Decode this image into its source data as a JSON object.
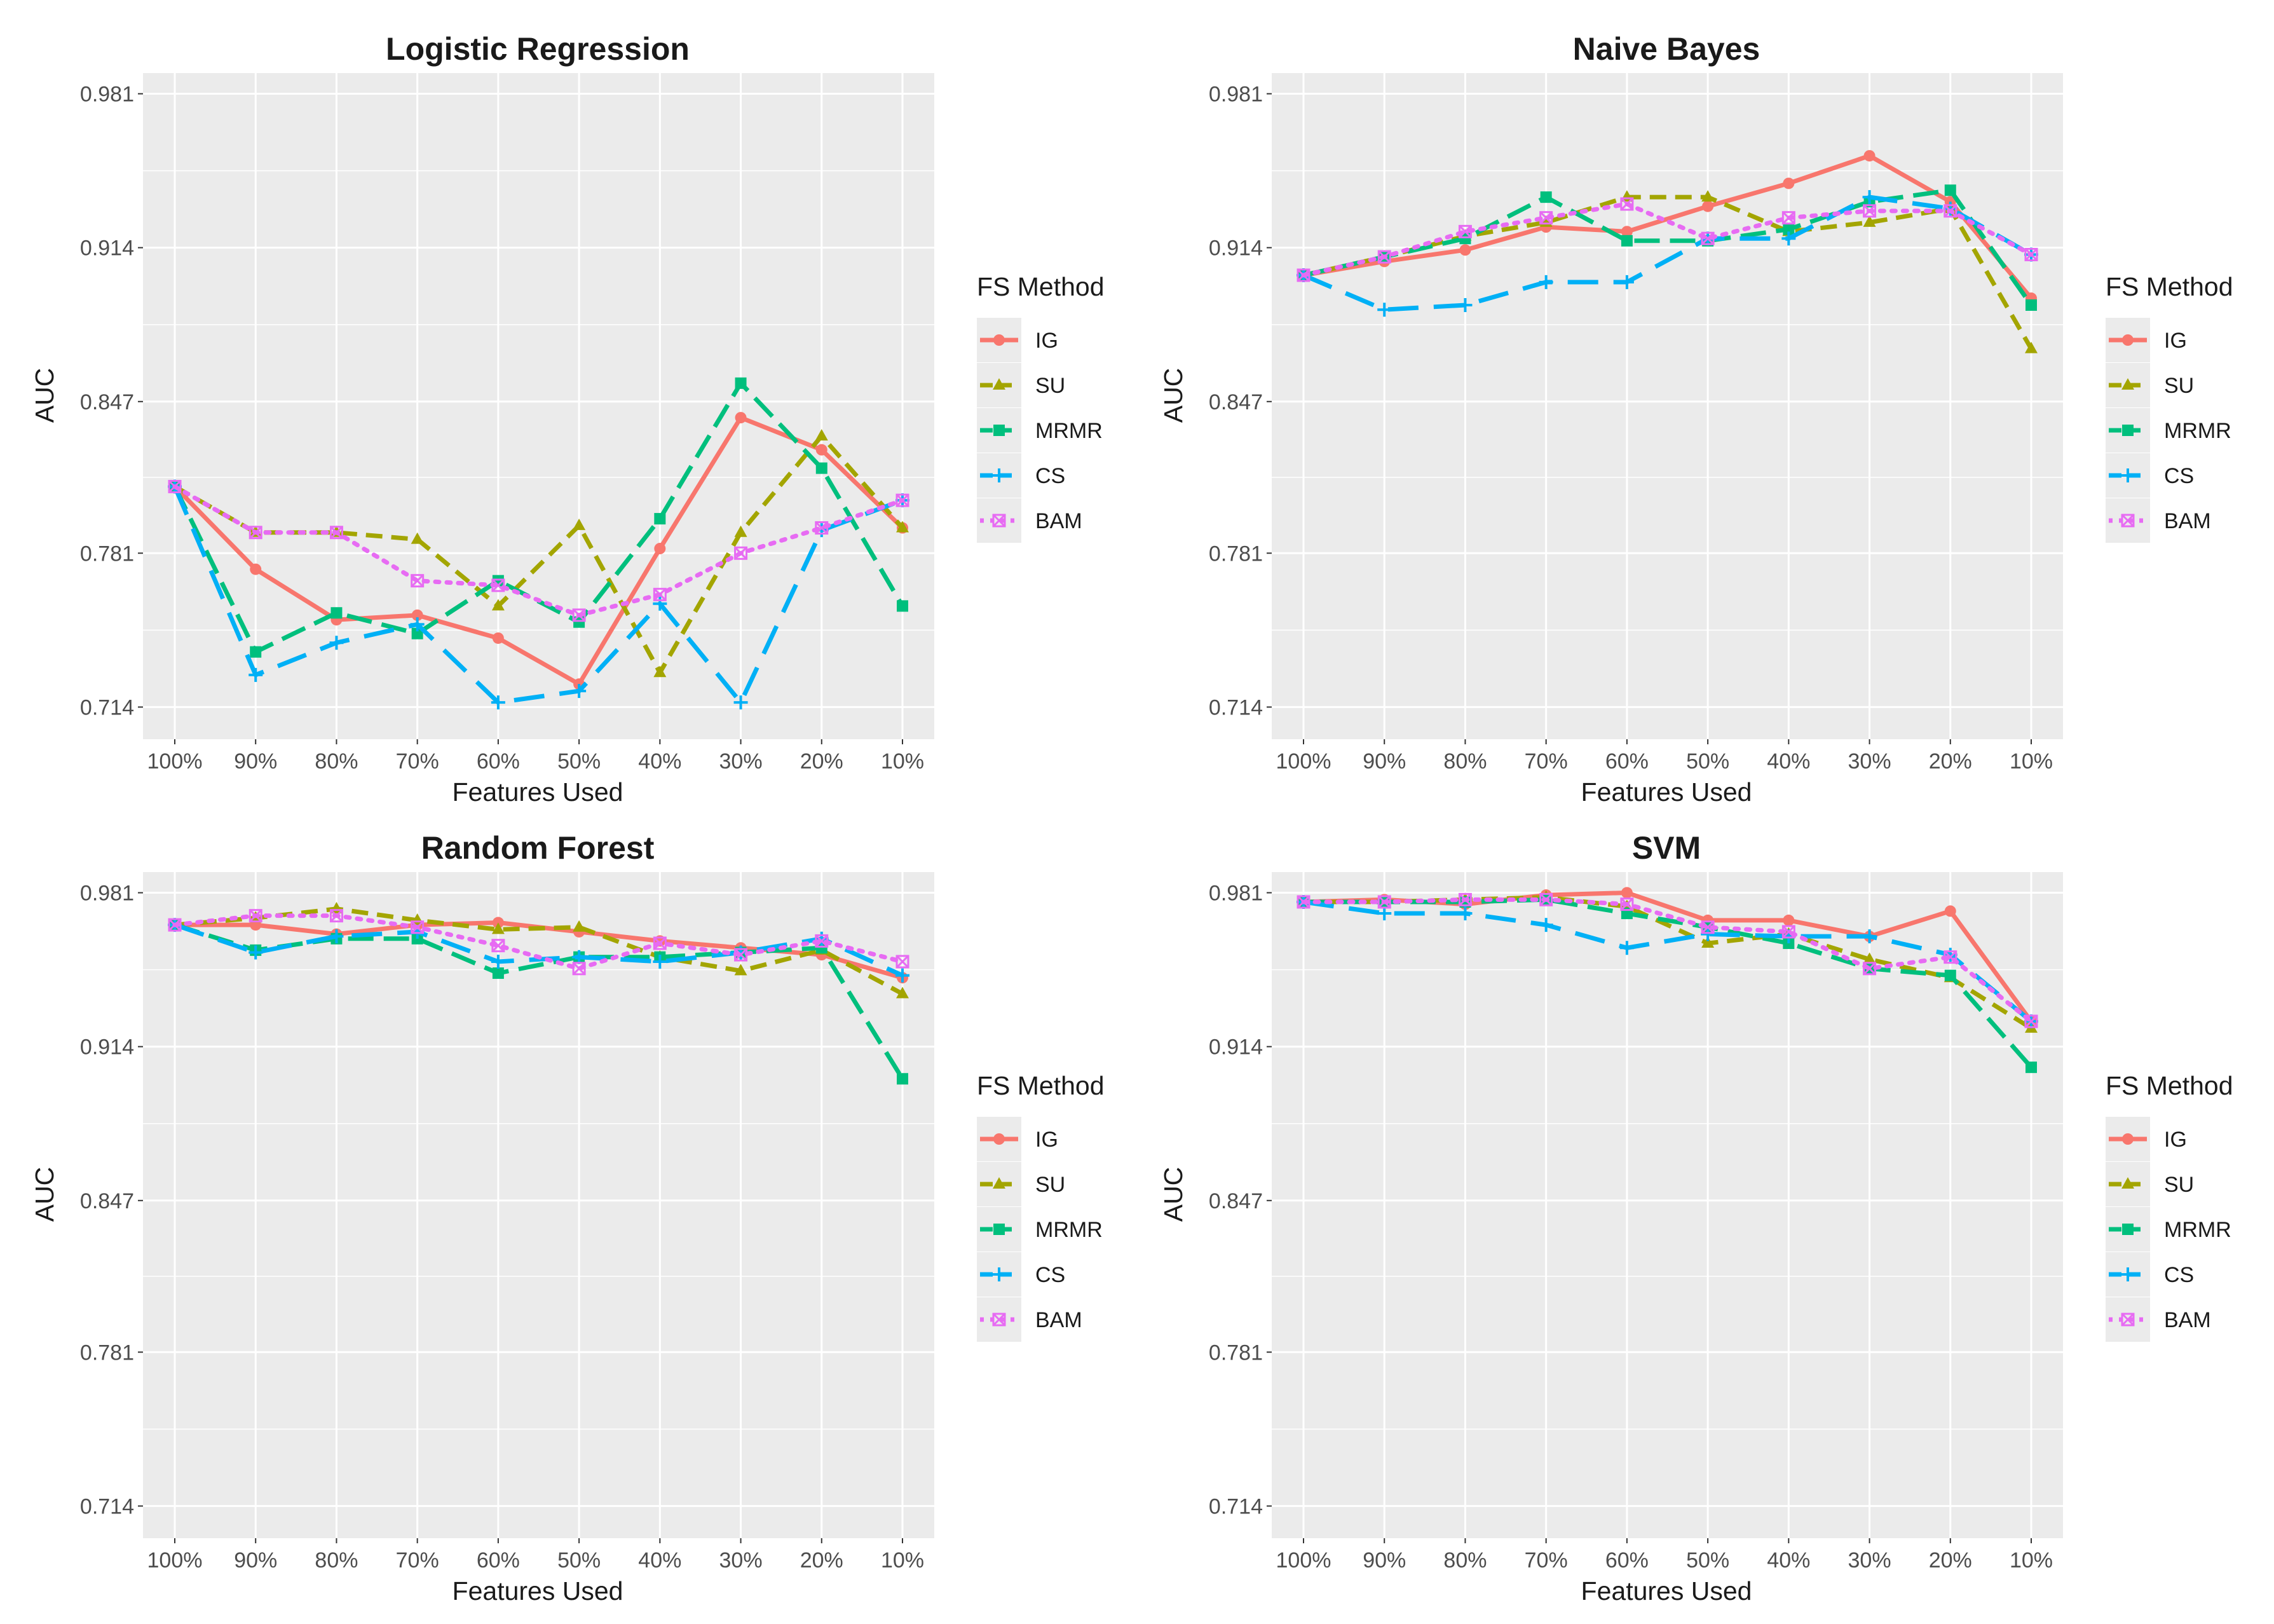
{
  "figure": {
    "plot_background": "#EBEBEB",
    "grid_color": "#FFFFFF"
  },
  "legend": {
    "title": "FS Method",
    "entries": [
      {
        "name": "IG",
        "color": "#F8766D",
        "dash": "solid",
        "marker": "circle"
      },
      {
        "name": "SU",
        "color": "#A3A500",
        "dash": "dashed",
        "marker": "triangle"
      },
      {
        "name": "MRMR",
        "color": "#00BF7D",
        "dash": "longdash",
        "marker": "square"
      },
      {
        "name": "CS",
        "color": "#00B0F6",
        "dash": "longdash2",
        "marker": "plus"
      },
      {
        "name": "BAM",
        "color": "#E76BF3",
        "dash": "dotted",
        "marker": "boxx"
      }
    ]
  },
  "chart_data": [
    {
      "type": "line",
      "title": "Logistic Regression",
      "xlabel": "Features Used",
      "ylabel": "AUC",
      "categories": [
        "100%",
        "90%",
        "80%",
        "70%",
        "60%",
        "50%",
        "40%",
        "30%",
        "20%",
        "10%"
      ],
      "yticks": [
        "0.714",
        "0.781",
        "0.847",
        "0.914",
        "0.981"
      ],
      "ylim": [
        0.7,
        0.99
      ],
      "grid": true,
      "legend_position": "right",
      "series": [
        {
          "name": "IG",
          "values": [
            0.81,
            0.774,
            0.752,
            0.754,
            0.744,
            0.724,
            0.783,
            0.84,
            0.826,
            0.792
          ]
        },
        {
          "name": "SU",
          "values": [
            0.81,
            0.79,
            0.79,
            0.787,
            0.758,
            0.793,
            0.729,
            0.79,
            0.832,
            0.792
          ]
        },
        {
          "name": "MRMR",
          "values": [
            0.81,
            0.738,
            0.755,
            0.746,
            0.769,
            0.751,
            0.796,
            0.855,
            0.818,
            0.758
          ]
        },
        {
          "name": "CS",
          "values": [
            0.81,
            0.728,
            0.742,
            0.75,
            0.716,
            0.721,
            0.759,
            0.716,
            0.791,
            0.804
          ]
        },
        {
          "name": "BAM",
          "values": [
            0.81,
            0.79,
            0.79,
            0.769,
            0.767,
            0.754,
            0.763,
            0.781,
            0.792,
            0.804
          ]
        }
      ]
    },
    {
      "type": "line",
      "title": "Naive Bayes",
      "xlabel": "Features Used",
      "ylabel": "AUC",
      "categories": [
        "100%",
        "90%",
        "80%",
        "70%",
        "60%",
        "50%",
        "40%",
        "30%",
        "20%",
        "10%"
      ],
      "yticks": [
        "0.714",
        "0.781",
        "0.847",
        "0.914",
        "0.981"
      ],
      "ylim": [
        0.7,
        0.99
      ],
      "grid": true,
      "legend_position": "right",
      "series": [
        {
          "name": "IG",
          "values": [
            0.902,
            0.908,
            0.913,
            0.923,
            0.921,
            0.932,
            0.942,
            0.954,
            0.934,
            0.892
          ]
        },
        {
          "name": "SU",
          "values": [
            0.902,
            0.91,
            0.919,
            0.925,
            0.936,
            0.936,
            0.921,
            0.925,
            0.931,
            0.87
          ]
        },
        {
          "name": "MRMR",
          "values": [
            0.902,
            0.91,
            0.918,
            0.936,
            0.917,
            0.917,
            0.922,
            0.934,
            0.939,
            0.889
          ]
        },
        {
          "name": "CS",
          "values": [
            0.902,
            0.887,
            0.889,
            0.899,
            0.899,
            0.918,
            0.918,
            0.936,
            0.931,
            0.911
          ]
        },
        {
          "name": "BAM",
          "values": [
            0.902,
            0.91,
            0.921,
            0.927,
            0.933,
            0.918,
            0.927,
            0.93,
            0.93,
            0.911
          ]
        }
      ]
    },
    {
      "type": "line",
      "title": "Random Forest",
      "xlabel": "Features Used",
      "ylabel": "AUC",
      "categories": [
        "100%",
        "90%",
        "80%",
        "70%",
        "60%",
        "50%",
        "40%",
        "30%",
        "20%",
        "10%"
      ],
      "yticks": [
        "0.714",
        "0.781",
        "0.847",
        "0.914",
        "0.981"
      ],
      "ylim": [
        0.7,
        0.99
      ],
      "grid": true,
      "legend_position": "right",
      "series": [
        {
          "name": "IG",
          "values": [
            0.967,
            0.967,
            0.963,
            0.967,
            0.968,
            0.964,
            0.96,
            0.957,
            0.954,
            0.944
          ]
        },
        {
          "name": "SU",
          "values": [
            0.967,
            0.97,
            0.974,
            0.969,
            0.965,
            0.966,
            0.953,
            0.947,
            0.956,
            0.937
          ]
        },
        {
          "name": "MRMR",
          "values": [
            0.967,
            0.956,
            0.961,
            0.961,
            0.946,
            0.953,
            0.953,
            0.955,
            0.957,
            0.9
          ]
        },
        {
          "name": "CS",
          "values": [
            0.967,
            0.955,
            0.962,
            0.964,
            0.951,
            0.953,
            0.951,
            0.955,
            0.961,
            0.945
          ]
        },
        {
          "name": "BAM",
          "values": [
            0.967,
            0.971,
            0.971,
            0.966,
            0.958,
            0.948,
            0.959,
            0.954,
            0.96,
            0.951
          ]
        }
      ]
    },
    {
      "type": "line",
      "title": "SVM",
      "xlabel": "Features Used",
      "ylabel": "AUC",
      "categories": [
        "100%",
        "90%",
        "80%",
        "70%",
        "60%",
        "50%",
        "40%",
        "30%",
        "20%",
        "10%"
      ],
      "yticks": [
        "0.714",
        "0.781",
        "0.847",
        "0.914",
        "0.981"
      ],
      "ylim": [
        0.7,
        0.99
      ],
      "grid": true,
      "legend_position": "right",
      "series": [
        {
          "name": "IG",
          "values": [
            0.977,
            0.978,
            0.976,
            0.98,
            0.981,
            0.969,
            0.969,
            0.962,
            0.973,
            0.925
          ]
        },
        {
          "name": "SU",
          "values": [
            0.977,
            0.977,
            0.978,
            0.979,
            0.975,
            0.959,
            0.963,
            0.952,
            0.944,
            0.922
          ]
        },
        {
          "name": "MRMR",
          "values": [
            0.977,
            0.977,
            0.977,
            0.978,
            0.972,
            0.966,
            0.959,
            0.948,
            0.945,
            0.905
          ]
        },
        {
          "name": "CS",
          "values": [
            0.977,
            0.972,
            0.972,
            0.967,
            0.957,
            0.963,
            0.962,
            0.962,
            0.954,
            0.925
          ]
        },
        {
          "name": "BAM",
          "values": [
            0.977,
            0.977,
            0.978,
            0.978,
            0.976,
            0.966,
            0.964,
            0.948,
            0.953,
            0.925
          ]
        }
      ]
    }
  ]
}
